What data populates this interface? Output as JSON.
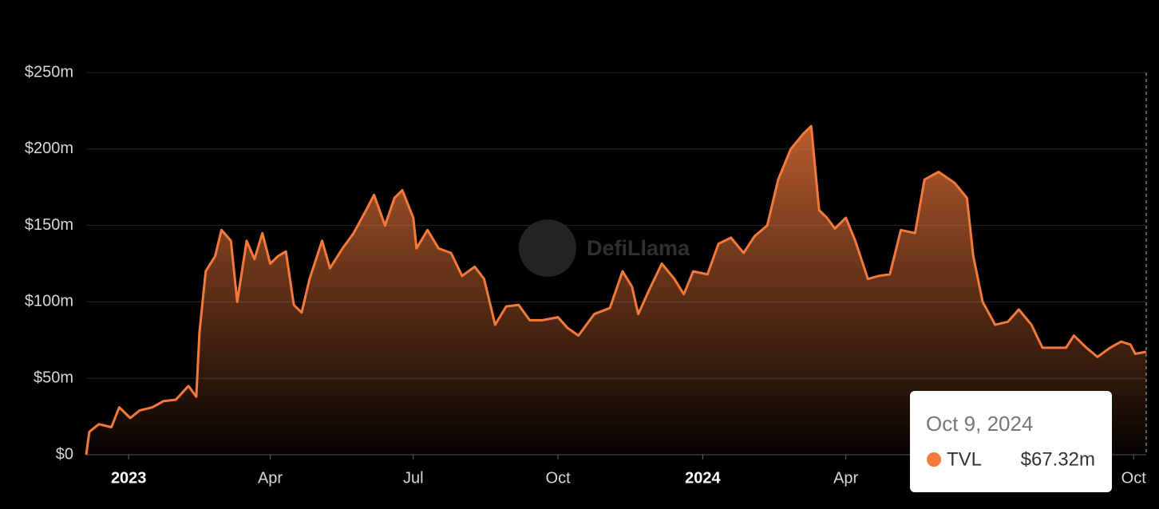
{
  "chart_data": {
    "type": "area",
    "watermark": "DefiLlama",
    "series": [
      {
        "name": "TVL",
        "color": "#f47a3c",
        "x": [
          "2022-12-05",
          "2022-12-07",
          "2022-12-13",
          "2022-12-21",
          "2022-12-26",
          "2023-01-02",
          "2023-01-08",
          "2023-01-16",
          "2023-01-23",
          "2023-01-31",
          "2023-02-08",
          "2023-02-13",
          "2023-02-15",
          "2023-02-19",
          "2023-02-25",
          "2023-03-01",
          "2023-03-07",
          "2023-03-11",
          "2023-03-17",
          "2023-03-22",
          "2023-03-27",
          "2023-04-01",
          "2023-04-06",
          "2023-04-11",
          "2023-04-16",
          "2023-04-21",
          "2023-04-26",
          "2023-05-04",
          "2023-05-09",
          "2023-05-17",
          "2023-05-24",
          "2023-06-01",
          "2023-06-06",
          "2023-06-13",
          "2023-06-19",
          "2023-06-24",
          "2023-07-01",
          "2023-07-03",
          "2023-07-10",
          "2023-07-17",
          "2023-07-25",
          "2023-08-01",
          "2023-08-09",
          "2023-08-15",
          "2023-08-22",
          "2023-08-29",
          "2023-09-06",
          "2023-09-13",
          "2023-09-21",
          "2023-10-01",
          "2023-10-07",
          "2023-10-14",
          "2023-10-24",
          "2023-11-03",
          "2023-11-11",
          "2023-11-17",
          "2023-11-21",
          "2023-11-28",
          "2023-12-06",
          "2023-12-14",
          "2023-12-20",
          "2023-12-26",
          "2024-01-04",
          "2024-01-11",
          "2024-01-19",
          "2024-01-27",
          "2024-02-03",
          "2024-02-11",
          "2024-02-18",
          "2024-02-26",
          "2024-03-05",
          "2024-03-10",
          "2024-03-15",
          "2024-03-20",
          "2024-03-25",
          "2024-04-01",
          "2024-04-07",
          "2024-04-15",
          "2024-04-22",
          "2024-04-29",
          "2024-05-06",
          "2024-05-15",
          "2024-05-21",
          "2024-05-30",
          "2024-06-09",
          "2024-06-17",
          "2024-06-21",
          "2024-06-27",
          "2024-07-05",
          "2024-07-13",
          "2024-07-20",
          "2024-07-28",
          "2024-08-04",
          "2024-08-12",
          "2024-08-19",
          "2024-08-24",
          "2024-09-01",
          "2024-09-08",
          "2024-09-16",
          "2024-09-23",
          "2024-09-29",
          "2024-10-02",
          "2024-10-09"
        ],
        "values": [
          0,
          15,
          20,
          18,
          31,
          24,
          29,
          31,
          35,
          36,
          45,
          38,
          80,
          120,
          130,
          147,
          140,
          100,
          140,
          128,
          145,
          125,
          130,
          133,
          98,
          93,
          115,
          140,
          122,
          135,
          145,
          160,
          170,
          150,
          168,
          173,
          155,
          135,
          147,
          135,
          132,
          117,
          123,
          115,
          85,
          97,
          98,
          88,
          88,
          90,
          83,
          78,
          92,
          96,
          120,
          110,
          92,
          108,
          125,
          115,
          105,
          120,
          118,
          138,
          142,
          132,
          143,
          150,
          180,
          200,
          210,
          215,
          160,
          155,
          148,
          155,
          140,
          115,
          117,
          118,
          147,
          145,
          180,
          185,
          178,
          168,
          130,
          100,
          85,
          87,
          95,
          85,
          70,
          70,
          70,
          78,
          70,
          64,
          70,
          74,
          72,
          66,
          67.32
        ]
      }
    ],
    "xlim": [
      "2022-12-05",
      "2024-10-09"
    ],
    "xticks": [
      {
        "value": "2023-01-01",
        "label": "2023"
      },
      {
        "value": "2023-04-01",
        "label": "Apr"
      },
      {
        "value": "2023-07-01",
        "label": "Jul"
      },
      {
        "value": "2023-10-01",
        "label": "Oct"
      },
      {
        "value": "2024-01-01",
        "label": "2024"
      },
      {
        "value": "2024-04-01",
        "label": "Apr"
      },
      {
        "value": "2024-10-01",
        "label": "Oct"
      }
    ],
    "ylim": [
      0,
      250
    ],
    "yticks": [
      {
        "value": 0,
        "label": "$0"
      },
      {
        "value": 50,
        "label": "$50m"
      },
      {
        "value": 100,
        "label": "$100m"
      },
      {
        "value": 150,
        "label": "$150m"
      },
      {
        "value": 200,
        "label": "$200m"
      },
      {
        "value": 250,
        "label": "$250m"
      }
    ],
    "grid": true,
    "tooltip": {
      "date": "Oct 9, 2024",
      "series": "TVL",
      "value": "$67.32m"
    }
  }
}
